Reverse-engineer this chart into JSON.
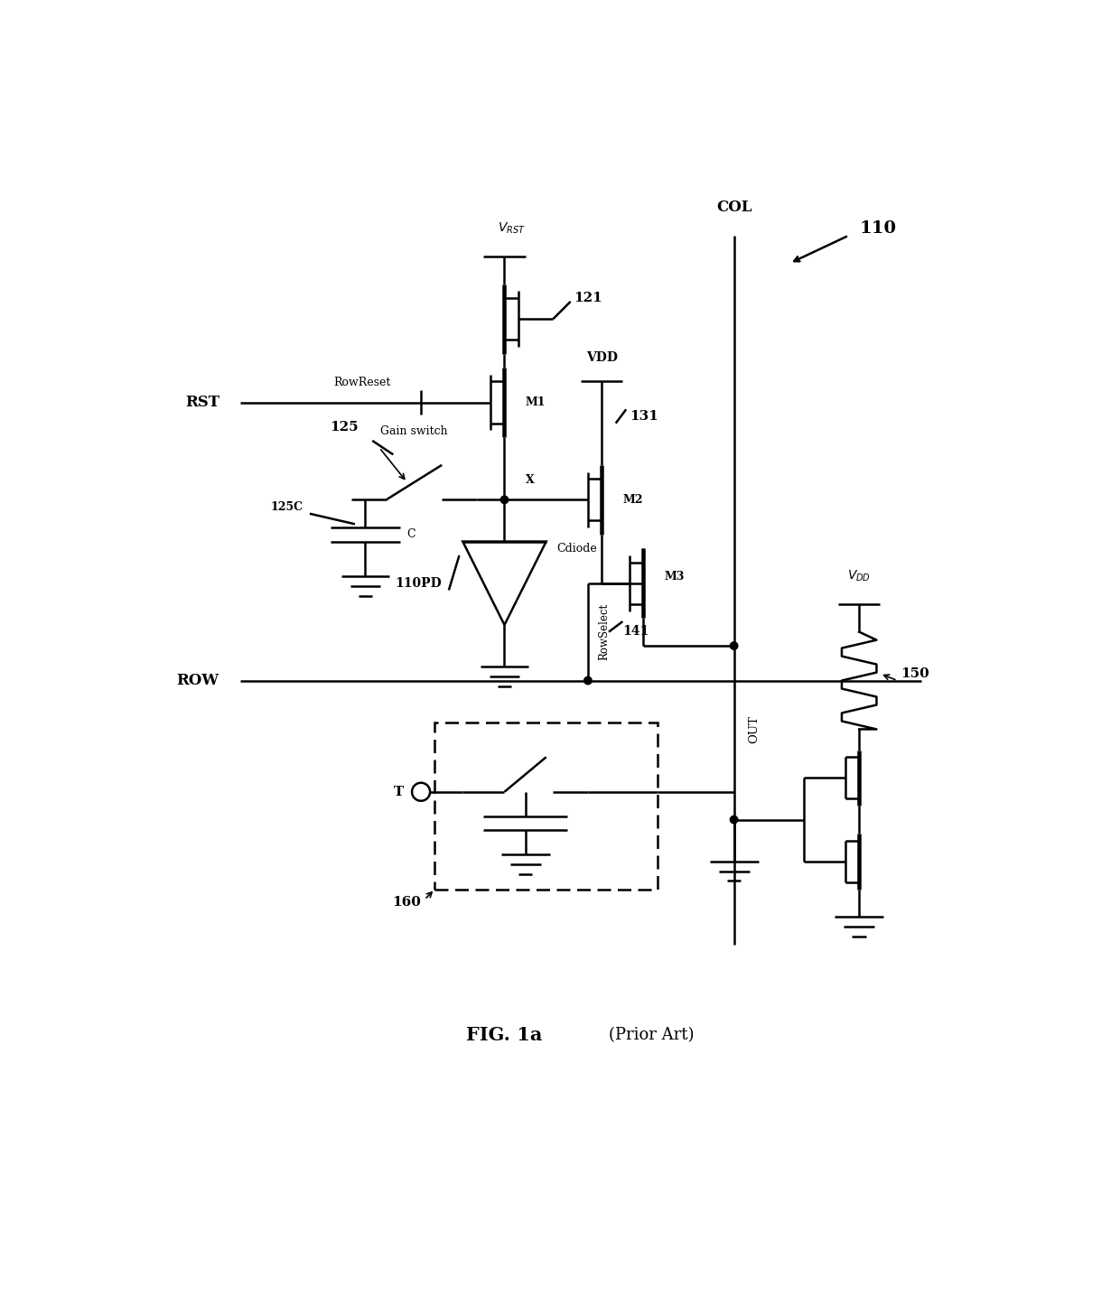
{
  "fig_width": 12.4,
  "fig_height": 14.35,
  "bg": "#ffffff",
  "lc": "#000000",
  "lw": 1.8,
  "title": "FIG. 1a",
  "subtitle": "(Prior Art)",
  "label_110": "110",
  "label_121": "121",
  "label_131": "131",
  "label_141": "141",
  "label_150": "150",
  "label_160": "160",
  "label_125": "125",
  "label_125C": "125C",
  "label_M1": "M1",
  "label_M2": "M2",
  "label_M3": "M3",
  "label_RST": "RST",
  "label_ROW": "ROW",
  "label_COL": "COL",
  "label_OUT": "OUT",
  "label_X": "X",
  "label_T": "T",
  "label_C": "C",
  "label_VDD": "VDD",
  "label_110PD": "110PD",
  "label_Cdiode": "Cdiode",
  "label_RowReset": "RowReset",
  "label_RowSelect": "RowSelect",
  "label_GainSwitch": "Gain switch"
}
